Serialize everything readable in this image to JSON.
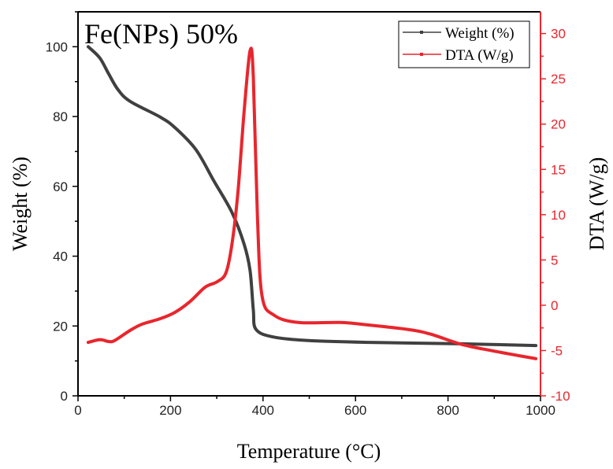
{
  "chart_data": {
    "type": "line",
    "annotation": "Fe(NPs) 50%",
    "xlabel": "Temperature (°C)",
    "ylabel": "Weight (%)",
    "y2label": "DTA (W/g)",
    "xlim": [
      0,
      1000
    ],
    "ylim": [
      0,
      110
    ],
    "y2lim": [
      -10,
      32.4
    ],
    "xticks": [
      0,
      200,
      400,
      600,
      800,
      1000
    ],
    "yticks": [
      0,
      20,
      40,
      60,
      80,
      100
    ],
    "y2ticks": [
      -10,
      -5,
      0,
      5,
      10,
      15,
      20,
      25,
      30
    ],
    "grid": false,
    "legend_position": "top-right",
    "series": [
      {
        "name": "Weight (%)",
        "axis": "left",
        "color": "#404040",
        "x": [
          22,
          47,
          66,
          86,
          112,
          177,
          209,
          255,
          294,
          333,
          359,
          372,
          379,
          385,
          424,
          502,
          632,
          828,
          990
        ],
        "y": [
          100,
          96.8,
          92.3,
          87.8,
          84.4,
          79.9,
          76.9,
          70.5,
          61.5,
          52.5,
          43.5,
          35.9,
          24.7,
          19.0,
          16.8,
          15.8,
          15.3,
          14.9,
          14.4
        ]
      },
      {
        "name": "DTA (W/g)",
        "axis": "right",
        "color": "#e8262d",
        "x": [
          22,
          47,
          66,
          79,
          112,
          138,
          177,
          209,
          242,
          275,
          301,
          320,
          333,
          346,
          359,
          372,
          379,
          388,
          398,
          424,
          476,
          567,
          632,
          717,
          763,
          828,
          893,
          990
        ],
        "y": [
          -4.1,
          -3.8,
          -4.0,
          -3.9,
          -2.8,
          -2.1,
          -1.5,
          -0.8,
          0.4,
          2.0,
          2.6,
          3.6,
          6.8,
          12.6,
          21.3,
          28.1,
          25.3,
          9.7,
          1.0,
          -1.1,
          -1.9,
          -1.9,
          -2.2,
          -2.7,
          -3.2,
          -4.3,
          -5.0,
          -5.9
        ]
      }
    ]
  }
}
